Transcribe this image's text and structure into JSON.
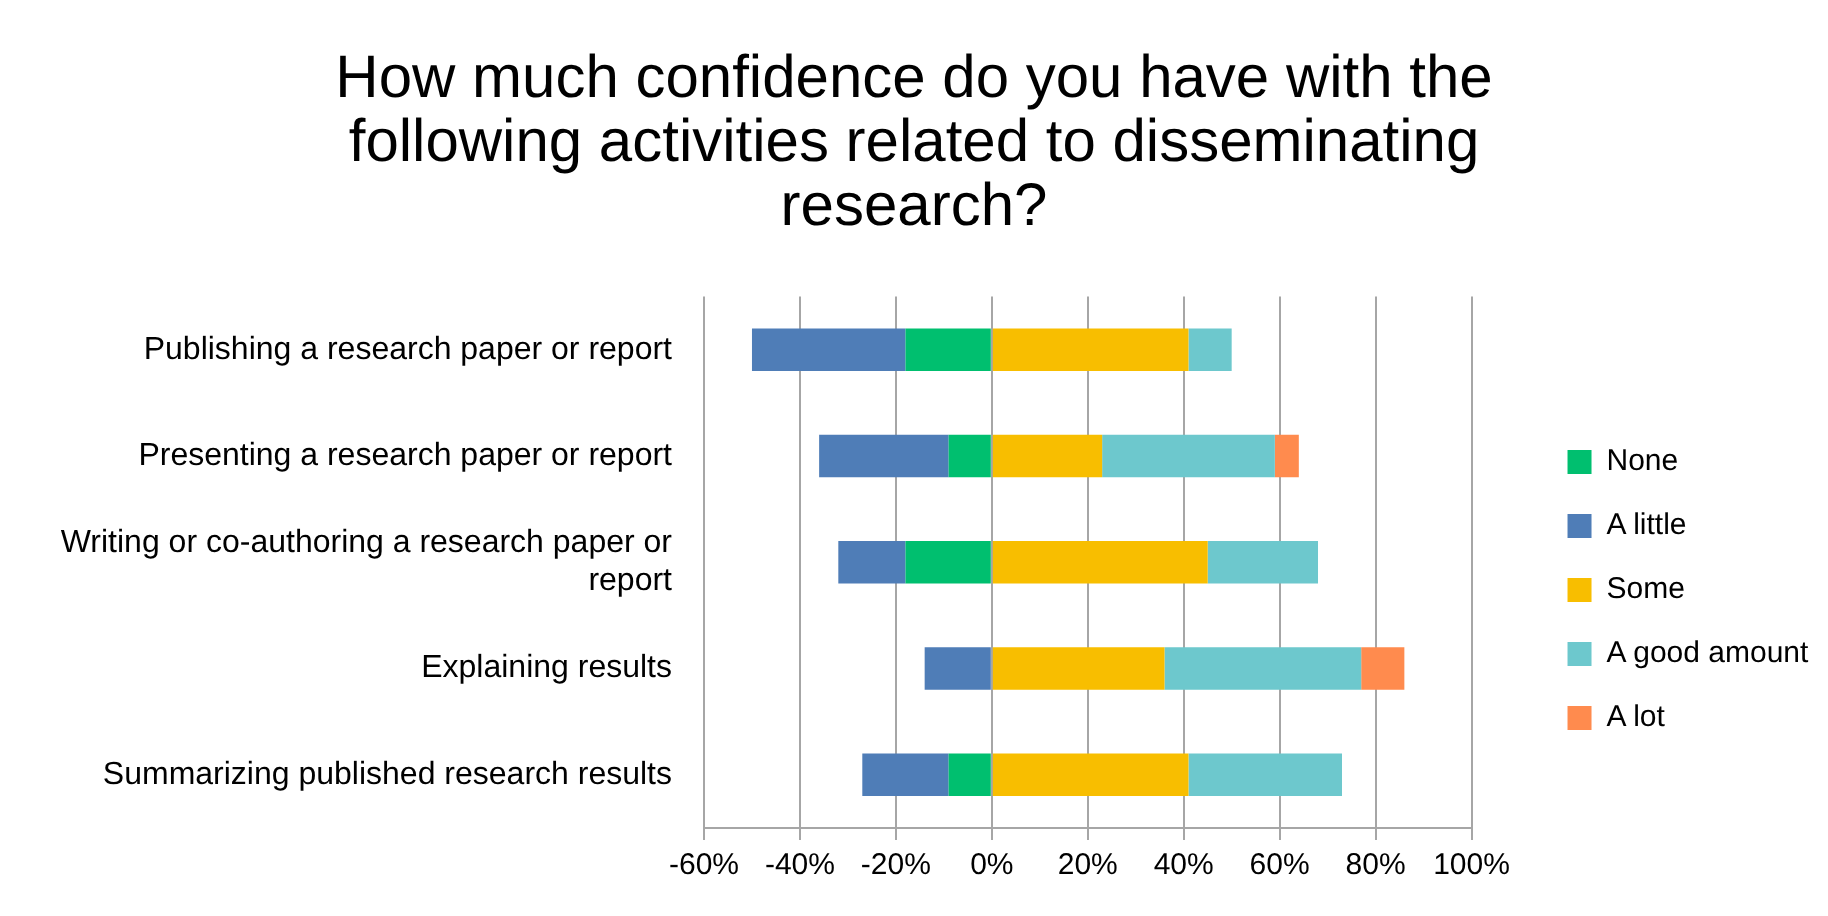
{
  "chart_data": {
    "type": "bar",
    "orientation": "horizontal",
    "stacked": true,
    "title": "How much confidence do you have with the following activities related to disseminating research?",
    "categories": [
      "Publishing a research paper or report",
      "Presenting a research paper or report",
      "Writing or co-authoring a research paper or report",
      "Explaining results",
      "Summarizing published research results"
    ],
    "series": [
      {
        "name": "None",
        "color": "#00bf6f",
        "values": [
          -18,
          -9,
          -18,
          0,
          -9
        ]
      },
      {
        "name": "A little",
        "color": "#4f7db7",
        "values": [
          -32,
          -27,
          -14,
          -14,
          -18
        ]
      },
      {
        "name": "Some",
        "color": "#f8be00",
        "values": [
          41,
          23,
          45,
          36,
          41
        ]
      },
      {
        "name": "A good amount",
        "color": "#6dc8cd",
        "values": [
          9,
          36,
          23,
          41,
          32
        ]
      },
      {
        "name": "A lot",
        "color": "#ff8b4e",
        "values": [
          0,
          5,
          0,
          9,
          0
        ]
      }
    ],
    "xlim": [
      -60,
      100
    ],
    "xticks": [
      {
        "value": -60,
        "label": "-60%"
      },
      {
        "value": -40,
        "label": "-40%"
      },
      {
        "value": -20,
        "label": "-20%"
      },
      {
        "value": 0,
        "label": "0%"
      },
      {
        "value": 20,
        "label": "20%"
      },
      {
        "value": 40,
        "label": "40%"
      },
      {
        "value": 60,
        "label": "60%"
      },
      {
        "value": 80,
        "label": "80%"
      },
      {
        "value": 100,
        "label": "100%"
      }
    ],
    "grid": "x",
    "legend": "right"
  }
}
